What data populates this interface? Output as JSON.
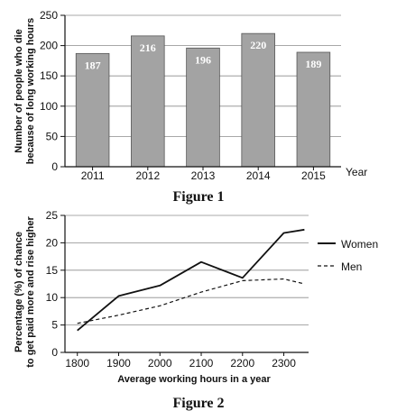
{
  "figures": [
    {
      "caption": "Figure 1"
    },
    {
      "caption": "Figure 2"
    }
  ],
  "chart_data": [
    {
      "type": "bar",
      "categories": [
        "2011",
        "2012",
        "2013",
        "2014",
        "2015"
      ],
      "values": [
        187,
        216,
        196,
        220,
        189
      ],
      "data_labels": [
        "187",
        "216",
        "196",
        "220",
        "189"
      ],
      "xlabel": "Year",
      "ylabel_lines": [
        "Number of people who die",
        "because of long working hours"
      ],
      "ylim": [
        0,
        250
      ],
      "yticks": [
        0,
        50,
        100,
        150,
        200,
        250
      ],
      "ytick_labels": [
        "0",
        "50",
        "100",
        "150",
        "200",
        "250"
      ],
      "grid": "horizontal",
      "bar_color": "#a3a3a3"
    },
    {
      "type": "line",
      "x": [
        1800,
        1900,
        2000,
        2100,
        2200,
        2300,
        2350
      ],
      "xticks": [
        1800,
        1900,
        2000,
        2100,
        2200,
        2300
      ],
      "xtick_labels": [
        "1800",
        "1900",
        "2000",
        "2100",
        "2200",
        "2300"
      ],
      "xlim": [
        1770,
        2360
      ],
      "xlabel": "Average working hours in a year",
      "ylabel_lines": [
        "Percentage (%) of chance",
        "to get paid more and rise higher"
      ],
      "ylim": [
        0,
        25
      ],
      "yticks": [
        0,
        5,
        10,
        15,
        20,
        25
      ],
      "ytick_labels": [
        "0",
        "5",
        "10",
        "15",
        "20",
        "25"
      ],
      "grid": "horizontal",
      "legend": "right",
      "series": [
        {
          "name": "Women",
          "style": "solid",
          "values": [
            4,
            10.3,
            12.2,
            16.5,
            13.6,
            21.8,
            22.4
          ]
        },
        {
          "name": "Men",
          "style": "dashed",
          "values": [
            5.3,
            6.8,
            8.5,
            11,
            13.1,
            13.4,
            12.5
          ]
        }
      ]
    }
  ]
}
